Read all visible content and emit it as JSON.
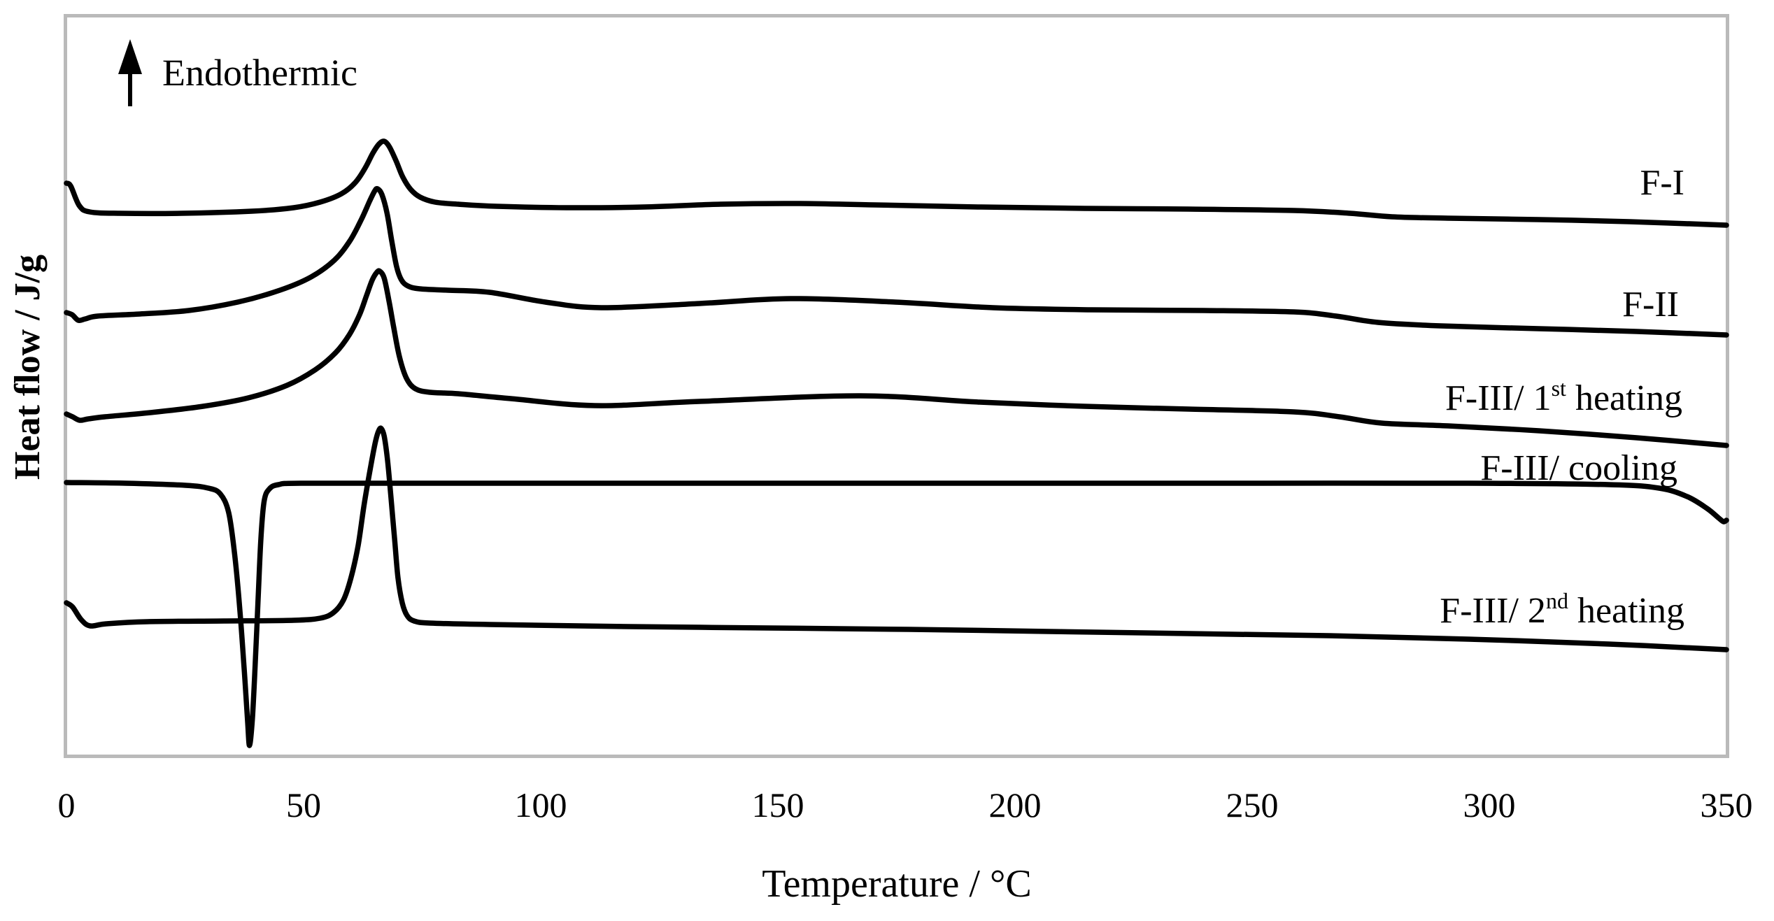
{
  "figure": {
    "background": "#ffffff",
    "plot_border_color": "#bababa",
    "curve_color": "#000000",
    "text_color": "#000000",
    "annotation": {
      "icon": "up-arrow-icon",
      "label": "Endothermic"
    }
  },
  "chart_data": {
    "type": "line",
    "title": "",
    "xlabel": "Temperature / °C",
    "ylabel": "Heat flow / J/g",
    "x_range": [
      0,
      350
    ],
    "x_ticks": [
      0,
      50,
      100,
      150,
      200,
      250,
      300,
      350
    ],
    "y_axis_numeric_labels": false,
    "y_units": "heat flow, arbitrary units (curves vertically offset for clarity)",
    "grid": false,
    "legend_position": "labels at right end of each curve",
    "orientation_note": "Endothermic direction is up",
    "peak_summary": [
      {
        "series": "F-I",
        "peak_T_C": 67,
        "direction": "endothermic (up)"
      },
      {
        "series": "F-II",
        "peak_T_C": 65.5,
        "direction": "endothermic (up)"
      },
      {
        "series": "F-III/ 1st heating",
        "peak_T_C": 66,
        "direction": "endothermic (up)"
      },
      {
        "series": "F-III/ cooling",
        "peak_T_C": 38.5,
        "direction": "exothermic (down)"
      },
      {
        "series": "F-III/ 2nd heating",
        "peak_T_C": 66,
        "direction": "endothermic (up)"
      }
    ],
    "series": [
      {
        "name": "F-I",
        "label": {
          "pre": "F-I",
          "sup": "",
          "post": ""
        },
        "points": [
          [
            0,
            8.2
          ],
          [
            0.9,
            8.16
          ],
          [
            2.7,
            7.88
          ],
          [
            4.9,
            7.79
          ],
          [
            11.1,
            7.77
          ],
          [
            24.3,
            7.77
          ],
          [
            39.1,
            7.8
          ],
          [
            47.9,
            7.85
          ],
          [
            53.5,
            7.93
          ],
          [
            58.0,
            8.05
          ],
          [
            60.9,
            8.21
          ],
          [
            63.0,
            8.42
          ],
          [
            64.6,
            8.63
          ],
          [
            65.9,
            8.76
          ],
          [
            67.0,
            8.8
          ],
          [
            68.1,
            8.72
          ],
          [
            69.5,
            8.52
          ],
          [
            70.9,
            8.29
          ],
          [
            72.6,
            8.11
          ],
          [
            74.6,
            8.0
          ],
          [
            77.7,
            7.93
          ],
          [
            82.6,
            7.9
          ],
          [
            90.7,
            7.87
          ],
          [
            105.5,
            7.85
          ],
          [
            121.7,
            7.86
          ],
          [
            137.9,
            7.9
          ],
          [
            154.1,
            7.91
          ],
          [
            170.4,
            7.89
          ],
          [
            192.5,
            7.86
          ],
          [
            214.6,
            7.84
          ],
          [
            236.7,
            7.83
          ],
          [
            258.8,
            7.81
          ],
          [
            270.6,
            7.77
          ],
          [
            279.5,
            7.72
          ],
          [
            291.3,
            7.7
          ],
          [
            310.5,
            7.68
          ],
          [
            329.6,
            7.65
          ],
          [
            350,
            7.6
          ]
        ]
      },
      {
        "name": "F-II",
        "label": {
          "pre": "F-II",
          "sup": "",
          "post": ""
        },
        "points": [
          [
            0,
            6.35
          ],
          [
            1.2,
            6.32
          ],
          [
            2.5,
            6.24
          ],
          [
            4.0,
            6.26
          ],
          [
            6.6,
            6.3
          ],
          [
            15.5,
            6.33
          ],
          [
            25.8,
            6.38
          ],
          [
            36.1,
            6.5
          ],
          [
            45.0,
            6.67
          ],
          [
            51.6,
            6.86
          ],
          [
            56.5,
            7.1
          ],
          [
            59.7,
            7.37
          ],
          [
            62.1,
            7.67
          ],
          [
            63.9,
            7.94
          ],
          [
            65.0,
            8.09
          ],
          [
            65.6,
            8.12
          ],
          [
            66.5,
            8.04
          ],
          [
            67.6,
            7.77
          ],
          [
            68.6,
            7.37
          ],
          [
            69.6,
            7.01
          ],
          [
            70.6,
            6.82
          ],
          [
            72.0,
            6.73
          ],
          [
            74.5,
            6.69
          ],
          [
            80.4,
            6.67
          ],
          [
            89.2,
            6.64
          ],
          [
            101.0,
            6.5
          ],
          [
            112.8,
            6.42
          ],
          [
            133.5,
            6.48
          ],
          [
            152.7,
            6.55
          ],
          [
            174.8,
            6.5
          ],
          [
            195.4,
            6.42
          ],
          [
            216.1,
            6.39
          ],
          [
            239.7,
            6.38
          ],
          [
            258.8,
            6.36
          ],
          [
            267.7,
            6.3
          ],
          [
            276.5,
            6.21
          ],
          [
            289.8,
            6.16
          ],
          [
            310.5,
            6.12
          ],
          [
            331.1,
            6.08
          ],
          [
            350,
            6.03
          ]
        ]
      },
      {
        "name": "F-III/ 1st heating",
        "label": {
          "pre": "F-III/ 1",
          "sup": "st",
          "post": " heating"
        },
        "points": [
          [
            0,
            4.9
          ],
          [
            1.3,
            4.86
          ],
          [
            2.8,
            4.81
          ],
          [
            4.6,
            4.83
          ],
          [
            8.1,
            4.86
          ],
          [
            17.7,
            4.92
          ],
          [
            28.8,
            5.01
          ],
          [
            38.3,
            5.13
          ],
          [
            46.5,
            5.31
          ],
          [
            52.4,
            5.53
          ],
          [
            56.8,
            5.78
          ],
          [
            59.7,
            6.04
          ],
          [
            61.8,
            6.32
          ],
          [
            63.3,
            6.6
          ],
          [
            64.5,
            6.82
          ],
          [
            65.5,
            6.93
          ],
          [
            66.1,
            6.94
          ],
          [
            67.0,
            6.84
          ],
          [
            68.0,
            6.52
          ],
          [
            69.0,
            6.14
          ],
          [
            70.2,
            5.72
          ],
          [
            71.7,
            5.41
          ],
          [
            73.6,
            5.26
          ],
          [
            76.7,
            5.21
          ],
          [
            82.6,
            5.19
          ],
          [
            93.7,
            5.12
          ],
          [
            111.4,
            5.02
          ],
          [
            133.5,
            5.08
          ],
          [
            167.4,
            5.16
          ],
          [
            192.5,
            5.07
          ],
          [
            214.6,
            5.01
          ],
          [
            236.7,
            4.97
          ],
          [
            258.8,
            4.93
          ],
          [
            268.4,
            4.86
          ],
          [
            277.3,
            4.77
          ],
          [
            291.3,
            4.73
          ],
          [
            310.5,
            4.66
          ],
          [
            331.1,
            4.56
          ],
          [
            350,
            4.45
          ]
        ]
      },
      {
        "name": "F-III/ cooling",
        "label": {
          "pre": "F-III/ cooling",
          "sup": "",
          "post": ""
        },
        "points": [
          [
            0,
            3.92
          ],
          [
            12.5,
            3.91
          ],
          [
            25.1,
            3.88
          ],
          [
            29.9,
            3.84
          ],
          [
            32.4,
            3.76
          ],
          [
            34.2,
            3.49
          ],
          [
            35.5,
            2.87
          ],
          [
            36.6,
            2.07
          ],
          [
            37.5,
            1.22
          ],
          [
            38.2,
            0.5
          ],
          [
            38.6,
            0.16
          ],
          [
            39.2,
            0.54
          ],
          [
            39.8,
            1.32
          ],
          [
            40.4,
            2.24
          ],
          [
            41.0,
            3.12
          ],
          [
            41.7,
            3.66
          ],
          [
            42.8,
            3.83
          ],
          [
            44.7,
            3.89
          ],
          [
            49.4,
            3.91
          ],
          [
            74.5,
            3.91
          ],
          [
            118.7,
            3.91
          ],
          [
            163.0,
            3.91
          ],
          [
            207.2,
            3.91
          ],
          [
            251.5,
            3.91
          ],
          [
            295.7,
            3.91
          ],
          [
            325.2,
            3.89
          ],
          [
            335.8,
            3.84
          ],
          [
            341.7,
            3.72
          ],
          [
            345.9,
            3.55
          ],
          [
            348.4,
            3.41
          ],
          [
            349.4,
            3.36
          ],
          [
            350,
            3.38
          ]
        ]
      },
      {
        "name": "F-III/ 2nd heating",
        "label": {
          "pre": "F-III/ 2",
          "sup": "nd",
          "post": " heating"
        },
        "points": [
          [
            0,
            2.2
          ],
          [
            1.3,
            2.14
          ],
          [
            3.1,
            1.96
          ],
          [
            5.0,
            1.87
          ],
          [
            8.4,
            1.9
          ],
          [
            17.0,
            1.93
          ],
          [
            33.2,
            1.94
          ],
          [
            47.9,
            1.95
          ],
          [
            53.5,
            1.98
          ],
          [
            56.3,
            2.06
          ],
          [
            58.4,
            2.24
          ],
          [
            60.0,
            2.56
          ],
          [
            61.5,
            3.02
          ],
          [
            62.8,
            3.62
          ],
          [
            64.2,
            4.17
          ],
          [
            65.2,
            4.52
          ],
          [
            65.9,
            4.67
          ],
          [
            66.4,
            4.69
          ],
          [
            67.0,
            4.58
          ],
          [
            67.7,
            4.24
          ],
          [
            68.4,
            3.72
          ],
          [
            69.2,
            3.1
          ],
          [
            69.9,
            2.56
          ],
          [
            70.8,
            2.2
          ],
          [
            71.8,
            2.02
          ],
          [
            73.3,
            1.94
          ],
          [
            76.7,
            1.91
          ],
          [
            89.2,
            1.89
          ],
          [
            118.7,
            1.86
          ],
          [
            148.2,
            1.84
          ],
          [
            177.7,
            1.82
          ],
          [
            207.2,
            1.79
          ],
          [
            236.7,
            1.76
          ],
          [
            266.2,
            1.73
          ],
          [
            295.7,
            1.68
          ],
          [
            325.2,
            1.61
          ],
          [
            350,
            1.53
          ]
        ]
      }
    ]
  }
}
